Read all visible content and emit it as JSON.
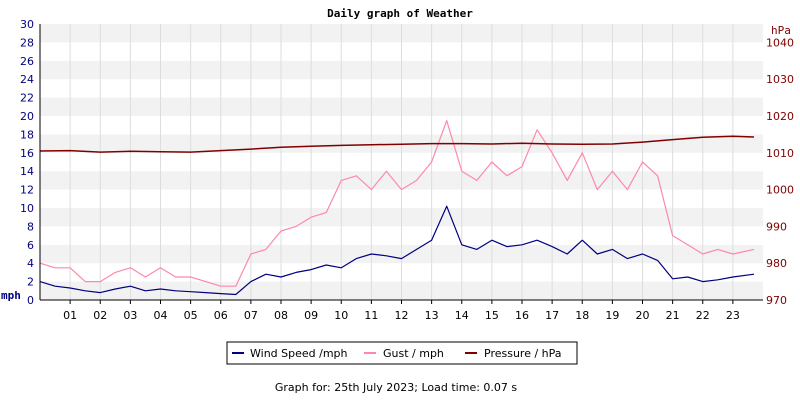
{
  "colors": {
    "wind": "#000080",
    "gust": "#ff88aa",
    "pressure": "#800000",
    "left_axis": "#000080",
    "right_axis": "#800000",
    "band_light": "#f2f2f2",
    "band_white": "#ffffff",
    "grid": "#dddddd",
    "legend_border": "#000000"
  },
  "footer": {
    "text": "Graph for: 25th July 2023; Load time: 0.07 s"
  },
  "chart_data": {
    "type": "line",
    "title": "Daily graph of Weather",
    "ylabel_left": "mph",
    "ylabel_right": "hPa",
    "ylim_left": [
      0,
      30
    ],
    "ylim_right": [
      970,
      1045
    ],
    "yticks_left": [
      0,
      2,
      4,
      6,
      8,
      10,
      12,
      14,
      16,
      18,
      20,
      22,
      24,
      26,
      28,
      30
    ],
    "yticks_right": [
      970,
      980,
      990,
      1000,
      1010,
      1020,
      1030,
      1040
    ],
    "xlim": [
      0,
      24
    ],
    "x_ticks": [
      "01",
      "02",
      "03",
      "04",
      "05",
      "06",
      "07",
      "08",
      "09",
      "10",
      "11",
      "12",
      "13",
      "14",
      "15",
      "16",
      "17",
      "18",
      "19",
      "20",
      "21",
      "22",
      "23"
    ],
    "grid": "horizontal bands",
    "legend_position": "bottom-center",
    "series": [
      {
        "name": "Wind Speed /mph",
        "axis": "left",
        "x": [
          0,
          0.5,
          1,
          1.5,
          2,
          2.5,
          3,
          3.5,
          4,
          4.5,
          5,
          5.5,
          6,
          6.5,
          7,
          7.5,
          8,
          8.5,
          9,
          9.5,
          10,
          10.5,
          11,
          11.5,
          12,
          12.5,
          13,
          13.5,
          14,
          14.5,
          15,
          15.5,
          16,
          16.5,
          17,
          17.5,
          18,
          18.5,
          19,
          19.5,
          20,
          20.5,
          21,
          21.5,
          22,
          22.5,
          23,
          23.7
        ],
        "values": [
          2.0,
          1.5,
          1.3,
          1.0,
          0.8,
          1.2,
          1.5,
          1.0,
          1.2,
          1.0,
          0.9,
          0.8,
          0.7,
          0.6,
          2.0,
          2.8,
          2.5,
          3.0,
          3.3,
          3.8,
          3.5,
          4.5,
          5.0,
          4.8,
          4.5,
          5.5,
          6.5,
          10.2,
          6.0,
          5.5,
          6.5,
          5.8,
          6.0,
          6.5,
          5.8,
          5.0,
          6.5,
          5.0,
          5.5,
          4.5,
          5.0,
          4.3,
          2.3,
          2.5,
          2.0,
          2.2,
          2.5,
          2.8
        ]
      },
      {
        "name": "Gust / mph",
        "axis": "left",
        "x": [
          0,
          0.5,
          1,
          1.5,
          2,
          2.5,
          3,
          3.5,
          4,
          4.5,
          5,
          5.5,
          6,
          6.5,
          7,
          7.5,
          8,
          8.5,
          9,
          9.5,
          10,
          10.5,
          11,
          11.5,
          12,
          12.5,
          13,
          13.5,
          14,
          14.5,
          15,
          15.5,
          16,
          16.5,
          17,
          17.5,
          18,
          18.5,
          19,
          19.5,
          20,
          20.5,
          21,
          21.5,
          22,
          22.5,
          23,
          23.7
        ],
        "values": [
          4.0,
          3.5,
          3.5,
          2.0,
          2.0,
          3.0,
          3.5,
          2.5,
          3.5,
          2.5,
          2.5,
          2.0,
          1.5,
          1.5,
          5.0,
          5.5,
          7.5,
          8.0,
          9.0,
          9.5,
          13.0,
          13.5,
          12.0,
          14.0,
          12.0,
          13.0,
          15.0,
          19.5,
          14.0,
          13.0,
          15.0,
          13.5,
          14.5,
          18.5,
          16.0,
          13.0,
          16.0,
          12.0,
          14.0,
          12.0,
          15.0,
          13.5,
          7.0,
          6.0,
          5.0,
          5.5,
          5.0,
          5.5
        ]
      },
      {
        "name": "Pressure / hPa",
        "axis": "right",
        "x": [
          0,
          1,
          2,
          3,
          4,
          5,
          6,
          7,
          8,
          9,
          10,
          11,
          12,
          13,
          14,
          15,
          16,
          17,
          18,
          19,
          20,
          21,
          22,
          23,
          23.7
        ],
        "values": [
          1010.5,
          1010.6,
          1010.2,
          1010.4,
          1010.3,
          1010.2,
          1010.6,
          1011.0,
          1011.5,
          1011.8,
          1012.0,
          1012.2,
          1012.3,
          1012.5,
          1012.5,
          1012.4,
          1012.6,
          1012.4,
          1012.3,
          1012.4,
          1012.9,
          1013.6,
          1014.2,
          1014.5,
          1014.3
        ]
      }
    ]
  }
}
